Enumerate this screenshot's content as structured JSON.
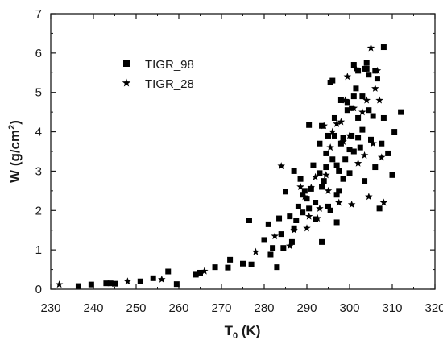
{
  "chart_data": {
    "type": "scatter",
    "title": "",
    "xlabel": {
      "main": "T",
      "sub": "0",
      "rest": " (K)"
    },
    "ylabel": {
      "main": "W (g/cm",
      "sup": "2",
      "rest": ")"
    },
    "xlim": [
      230,
      320
    ],
    "ylim": [
      0,
      7
    ],
    "xticks": [
      230,
      240,
      250,
      260,
      270,
      280,
      290,
      300,
      310,
      320
    ],
    "yticks": [
      0,
      1,
      2,
      3,
      4,
      5,
      6,
      7
    ],
    "grid": false,
    "legend": "top-left",
    "series": [
      {
        "name": "TIGR_98",
        "marker": "square",
        "color": "#000000",
        "points": [
          [
            236.5,
            0.08
          ],
          [
            239.5,
            0.12
          ],
          [
            243,
            0.15
          ],
          [
            244,
            0.15
          ],
          [
            245,
            0.14
          ],
          [
            251,
            0.2
          ],
          [
            254,
            0.28
          ],
          [
            257.5,
            0.45
          ],
          [
            259.5,
            0.13
          ],
          [
            264,
            0.37
          ],
          [
            265,
            0.42
          ],
          [
            268.5,
            0.56
          ],
          [
            271.5,
            0.55
          ],
          [
            272,
            0.75
          ],
          [
            275,
            0.65
          ],
          [
            276.5,
            1.75
          ],
          [
            277,
            0.63
          ],
          [
            280,
            1.25
          ],
          [
            281,
            1.65
          ],
          [
            281.5,
            0.88
          ],
          [
            282,
            1.05
          ],
          [
            283,
            0.56
          ],
          [
            283.5,
            1.8
          ],
          [
            284,
            1.4
          ],
          [
            284.5,
            1.05
          ],
          [
            285,
            2.48
          ],
          [
            286,
            1.85
          ],
          [
            286.5,
            1.2
          ],
          [
            287,
            1.55
          ],
          [
            287.5,
            1.75
          ],
          [
            287,
            3.0
          ],
          [
            288,
            2.1
          ],
          [
            288.5,
            2.8
          ],
          [
            289,
            1.95
          ],
          [
            289,
            2.4
          ],
          [
            289.5,
            2.5
          ],
          [
            290,
            2.3
          ],
          [
            290.5,
            4.17
          ],
          [
            290.5,
            2.05
          ],
          [
            291,
            2.55
          ],
          [
            291.5,
            3.15
          ],
          [
            292,
            2.2
          ],
          [
            292,
            1.78
          ],
          [
            293,
            2.95
          ],
          [
            293,
            3.7
          ],
          [
            293.5,
            4.15
          ],
          [
            293.5,
            2.6
          ],
          [
            293.5,
            1.2
          ],
          [
            294,
            2.75
          ],
          [
            294.5,
            3.1
          ],
          [
            294.5,
            3.45
          ],
          [
            295,
            2.1
          ],
          [
            295,
            3.9
          ],
          [
            295.5,
            5.25
          ],
          [
            295.5,
            2.0
          ],
          [
            296,
            3.3
          ],
          [
            296,
            5.3
          ],
          [
            296.5,
            4.35
          ],
          [
            296.5,
            3.9
          ],
          [
            297,
            2.4
          ],
          [
            297,
            3.15
          ],
          [
            297,
            1.7
          ],
          [
            297.5,
            3.0
          ],
          [
            297.5,
            2.5
          ],
          [
            298,
            3.7
          ],
          [
            298,
            4.8
          ],
          [
            298.5,
            3.85
          ],
          [
            298.5,
            2.8
          ],
          [
            299,
            3.3
          ],
          [
            299.5,
            4.55
          ],
          [
            299.5,
            4.75
          ],
          [
            300,
            3.55
          ],
          [
            300,
            2.95
          ],
          [
            300.5,
            4.6
          ],
          [
            300.5,
            3.9
          ],
          [
            301,
            4.9
          ],
          [
            301,
            5.7
          ],
          [
            301,
            3.5
          ],
          [
            301.5,
            5.1
          ],
          [
            302,
            4.35
          ],
          [
            302,
            5.55
          ],
          [
            302,
            3.85
          ],
          [
            302.5,
            3.6
          ],
          [
            303,
            4.9
          ],
          [
            303,
            4.05
          ],
          [
            303.5,
            5.6
          ],
          [
            303.5,
            2.75
          ],
          [
            304,
            5.75
          ],
          [
            304,
            5.6
          ],
          [
            304.5,
            5.45
          ],
          [
            304.5,
            4.55
          ],
          [
            305,
            3.8
          ],
          [
            305.5,
            4.4
          ],
          [
            306,
            5.55
          ],
          [
            306,
            3.1
          ],
          [
            306.5,
            5.35
          ],
          [
            307,
            2.05
          ],
          [
            308,
            6.15
          ],
          [
            308,
            4.35
          ],
          [
            309,
            3.45
          ],
          [
            310,
            2.9
          ],
          [
            310.5,
            4.0
          ],
          [
            312,
            4.5
          ],
          [
            307.5,
            3.7
          ]
        ]
      },
      {
        "name": "TIGR_28",
        "marker": "star",
        "color": "#000000",
        "points": [
          [
            232,
            0.12
          ],
          [
            248,
            0.2
          ],
          [
            256,
            0.25
          ],
          [
            266,
            0.46
          ],
          [
            278,
            0.95
          ],
          [
            282.5,
            1.35
          ],
          [
            284,
            3.13
          ],
          [
            286,
            1.1
          ],
          [
            287,
            1.5
          ],
          [
            288.5,
            2.6
          ],
          [
            289.5,
            2.35
          ],
          [
            290,
            1.55
          ],
          [
            290.5,
            1.85
          ],
          [
            291,
            2.58
          ],
          [
            292,
            2.85
          ],
          [
            292.5,
            1.8
          ],
          [
            293,
            2.05
          ],
          [
            294,
            4.15
          ],
          [
            294.5,
            2.9
          ],
          [
            295,
            2.5
          ],
          [
            295.5,
            3.6
          ],
          [
            296,
            4.0
          ],
          [
            297,
            4.2
          ],
          [
            297.5,
            2.2
          ],
          [
            298,
            4.25
          ],
          [
            298.5,
            3.75
          ],
          [
            299,
            4.8
          ],
          [
            299.5,
            5.4
          ],
          [
            300,
            3.9
          ],
          [
            300.5,
            2.15
          ],
          [
            301,
            4.6
          ],
          [
            301.5,
            5.6
          ],
          [
            302,
            3.2
          ],
          [
            303,
            4.5
          ],
          [
            303.5,
            3.4
          ],
          [
            304,
            4.8
          ],
          [
            304.5,
            2.35
          ],
          [
            305,
            6.13
          ],
          [
            305.5,
            3.7
          ],
          [
            306,
            5.1
          ],
          [
            306.5,
            5.55
          ],
          [
            307,
            4.8
          ],
          [
            307.5,
            3.35
          ],
          [
            308,
            2.2
          ]
        ]
      }
    ]
  }
}
